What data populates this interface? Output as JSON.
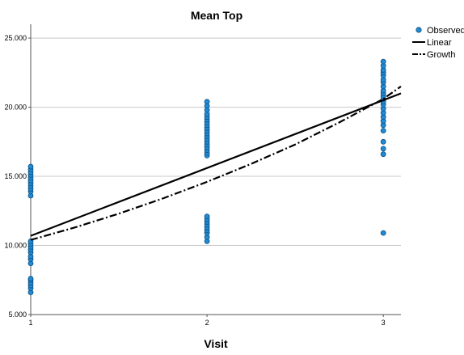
{
  "chart_data": {
    "type": "scatter",
    "title": "Mean Top",
    "xlabel": "Visit",
    "ylabel": "",
    "xlim": [
      1,
      3.1
    ],
    "ylim": [
      5,
      26
    ],
    "x_ticks": [
      1,
      2,
      3
    ],
    "x_tick_labels": [
      "1",
      "2",
      "3"
    ],
    "y_ticks": [
      5,
      10,
      15,
      20,
      25
    ],
    "y_tick_labels": [
      "5.000",
      "10.000",
      "15.000",
      "20.000",
      "25.000"
    ],
    "grid": "horizontal",
    "legend_position": "top-right",
    "series": [
      {
        "name": "Observed",
        "kind": "points",
        "color": "#1f8ad6",
        "points": [
          [
            1,
            6.6
          ],
          [
            1,
            6.9
          ],
          [
            1,
            7.1
          ],
          [
            1,
            7.3
          ],
          [
            1,
            7.5
          ],
          [
            1,
            7.6
          ],
          [
            1,
            8.7
          ],
          [
            1,
            9.0
          ],
          [
            1,
            9.2
          ],
          [
            1,
            9.5
          ],
          [
            1,
            9.7
          ],
          [
            1,
            9.9
          ],
          [
            1,
            10.1
          ],
          [
            1,
            10.3
          ],
          [
            1,
            13.6
          ],
          [
            1,
            13.9
          ],
          [
            1,
            14.1
          ],
          [
            1,
            14.3
          ],
          [
            1,
            14.5
          ],
          [
            1,
            14.7
          ],
          [
            1,
            14.9
          ],
          [
            1,
            15.1
          ],
          [
            1,
            15.3
          ],
          [
            1,
            15.5
          ],
          [
            1,
            15.7
          ],
          [
            2,
            10.3
          ],
          [
            2,
            10.6
          ],
          [
            2,
            10.9
          ],
          [
            2,
            11.1
          ],
          [
            2,
            11.3
          ],
          [
            2,
            11.5
          ],
          [
            2,
            11.7
          ],
          [
            2,
            11.9
          ],
          [
            2,
            12.1
          ],
          [
            2,
            16.5
          ],
          [
            2,
            16.7
          ],
          [
            2,
            16.9
          ],
          [
            2,
            17.1
          ],
          [
            2,
            17.3
          ],
          [
            2,
            17.5
          ],
          [
            2,
            17.7
          ],
          [
            2,
            17.9
          ],
          [
            2,
            18.1
          ],
          [
            2,
            18.3
          ],
          [
            2,
            18.5
          ],
          [
            2,
            18.7
          ],
          [
            2,
            18.9
          ],
          [
            2,
            19.1
          ],
          [
            2,
            19.3
          ],
          [
            2,
            19.5
          ],
          [
            2,
            19.8
          ],
          [
            2,
            20.1
          ],
          [
            2,
            20.4
          ],
          [
            3,
            10.9
          ],
          [
            3,
            16.6
          ],
          [
            3,
            17.0
          ],
          [
            3,
            17.5
          ],
          [
            3,
            18.3
          ],
          [
            3,
            18.7
          ],
          [
            3,
            19.0
          ],
          [
            3,
            19.3
          ],
          [
            3,
            19.6
          ],
          [
            3,
            19.9
          ],
          [
            3,
            20.2
          ],
          [
            3,
            20.4
          ],
          [
            3,
            20.6
          ],
          [
            3,
            20.8
          ],
          [
            3,
            21.0
          ],
          [
            3,
            21.2
          ],
          [
            3,
            21.5
          ],
          [
            3,
            21.8
          ],
          [
            3,
            22.0
          ],
          [
            3,
            22.3
          ],
          [
            3,
            22.5
          ],
          [
            3,
            22.7
          ],
          [
            3,
            23.0
          ],
          [
            3,
            23.3
          ]
        ]
      },
      {
        "name": "Linear",
        "kind": "line",
        "style": "solid",
        "color": "#000000",
        "x": [
          1,
          3.1
        ],
        "y": [
          10.7,
          21.0
        ]
      },
      {
        "name": "Growth",
        "kind": "line",
        "style": "dash-dot",
        "color": "#000000",
        "x": [
          1,
          1.25,
          1.5,
          1.75,
          2,
          2.25,
          2.5,
          2.75,
          3,
          3.1
        ],
        "y": [
          10.4,
          11.3,
          12.3,
          13.4,
          14.6,
          15.9,
          17.3,
          18.9,
          20.6,
          21.5
        ]
      }
    ]
  }
}
